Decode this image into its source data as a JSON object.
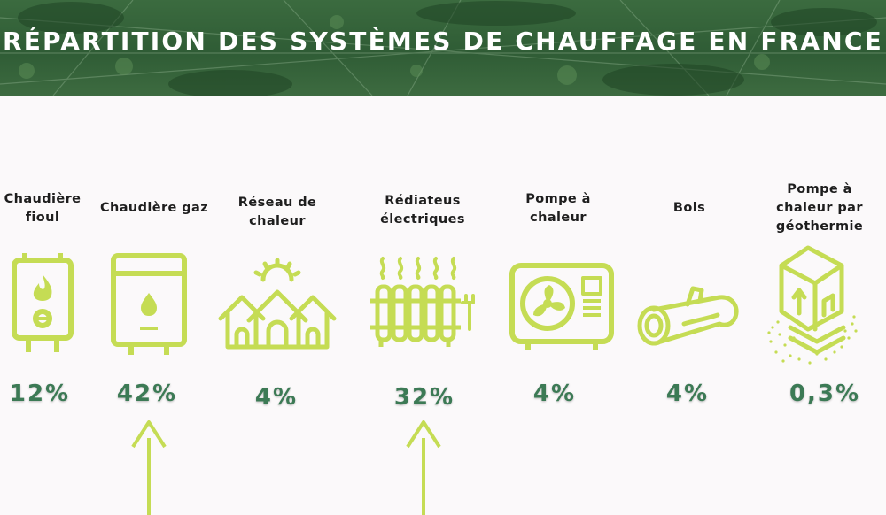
{
  "title": "RÉPARTITION DES SYSTÈMES DE CHAUFFAGE EN FRANCE",
  "accent_color": "#c5dc54",
  "value_color": "#3c7a55",
  "banner_color": "#2f5c35",
  "items": [
    {
      "label": "Chaudière fioul",
      "value": "12%",
      "icon": "oil-boiler-icon",
      "highlighted": false
    },
    {
      "label": "Chaudière gaz",
      "value": "42%",
      "icon": "gas-boiler-icon",
      "highlighted": true
    },
    {
      "label": "Réseau de chaleur",
      "value": "4%",
      "icon": "heat-network-icon",
      "highlighted": false
    },
    {
      "label": "Rédiateus électriques",
      "value": "32%",
      "icon": "electric-radiator-icon",
      "highlighted": true
    },
    {
      "label": "Pompe à chaleur",
      "value": "4%",
      "icon": "heat-pump-icon",
      "highlighted": false
    },
    {
      "label": "Bois",
      "value": "4%",
      "icon": "wood-log-icon",
      "highlighted": false
    },
    {
      "label": "Pompe à chaleur par géothermie",
      "value": "0,3%",
      "icon": "geothermal-heat-pump-icon",
      "highlighted": false
    }
  ]
}
